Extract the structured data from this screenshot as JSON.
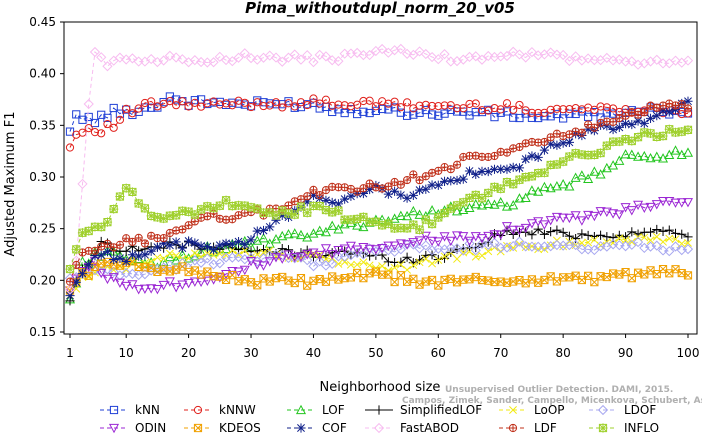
{
  "chart_data": {
    "type": "line",
    "title": "Pima_withoutdupl_norm_20_v05",
    "xlabel": "Neighborhood size",
    "ylabel": "Adjusted Maximum F1",
    "xlim": [
      1,
      100
    ],
    "ylim": [
      0.15,
      0.45
    ],
    "x_ticks": [
      "1",
      "10",
      "20",
      "30",
      "40",
      "50",
      "60",
      "70",
      "80",
      "90",
      "100"
    ],
    "y_ticks": [
      "0.15",
      "0.20",
      "0.25",
      "0.30",
      "0.35",
      "0.40",
      "0.45"
    ],
    "grid": false,
    "legend_position": "bottom",
    "watermark": [
      "Unsupervised Outlier Detection. DAMI, 2015.",
      "Campos, Zimek, Sander, Campello, Micenkova, Schubert, Assent, Houle"
    ],
    "series": [
      {
        "name": "kNN",
        "color": "#1f3fd6",
        "marker": "square",
        "dash": "4,3",
        "anchors": [
          [
            1,
            0.342
          ],
          [
            2,
            0.364
          ],
          [
            3,
            0.356
          ],
          [
            5,
            0.355
          ],
          [
            8,
            0.363
          ],
          [
            10,
            0.363
          ],
          [
            14,
            0.367
          ],
          [
            17,
            0.377
          ],
          [
            20,
            0.372
          ],
          [
            25,
            0.372
          ],
          [
            30,
            0.37
          ],
          [
            35,
            0.371
          ],
          [
            40,
            0.37
          ],
          [
            45,
            0.364
          ],
          [
            50,
            0.366
          ],
          [
            55,
            0.363
          ],
          [
            60,
            0.362
          ],
          [
            65,
            0.363
          ],
          [
            70,
            0.36
          ],
          [
            75,
            0.359
          ],
          [
            80,
            0.359
          ],
          [
            85,
            0.36
          ],
          [
            90,
            0.361
          ],
          [
            95,
            0.364
          ],
          [
            100,
            0.365
          ]
        ]
      },
      {
        "name": "kNNW",
        "color": "#e0201b",
        "marker": "circle",
        "dash": "4,3",
        "anchors": [
          [
            1,
            0.328
          ],
          [
            2,
            0.342
          ],
          [
            4,
            0.347
          ],
          [
            6,
            0.346
          ],
          [
            8,
            0.35
          ],
          [
            10,
            0.362
          ],
          [
            14,
            0.37
          ],
          [
            18,
            0.371
          ],
          [
            22,
            0.369
          ],
          [
            28,
            0.371
          ],
          [
            34,
            0.371
          ],
          [
            40,
            0.372
          ],
          [
            46,
            0.371
          ],
          [
            52,
            0.37
          ],
          [
            58,
            0.369
          ],
          [
            64,
            0.368
          ],
          [
            70,
            0.368
          ],
          [
            76,
            0.365
          ],
          [
            82,
            0.366
          ],
          [
            88,
            0.366
          ],
          [
            94,
            0.366
          ],
          [
            100,
            0.364
          ]
        ]
      },
      {
        "name": "LOF",
        "color": "#22c51e",
        "marker": "triangle-up",
        "dash": "4,3",
        "anchors": [
          [
            1,
            0.182
          ],
          [
            3,
            0.215
          ],
          [
            5,
            0.225
          ],
          [
            8,
            0.23
          ],
          [
            10,
            0.218
          ],
          [
            15,
            0.215
          ],
          [
            20,
            0.225
          ],
          [
            25,
            0.232
          ],
          [
            30,
            0.235
          ],
          [
            35,
            0.24
          ],
          [
            40,
            0.245
          ],
          [
            45,
            0.252
          ],
          [
            50,
            0.258
          ],
          [
            55,
            0.262
          ],
          [
            60,
            0.268
          ],
          [
            65,
            0.27
          ],
          [
            70,
            0.272
          ],
          [
            75,
            0.283
          ],
          [
            80,
            0.292
          ],
          [
            85,
            0.302
          ],
          [
            90,
            0.318
          ],
          [
            95,
            0.322
          ],
          [
            100,
            0.322
          ]
        ]
      },
      {
        "name": "SimplifiedLOF",
        "color": "#000000",
        "marker": "plus",
        "dash": "",
        "anchors": [
          [
            1,
            0.182
          ],
          [
            3,
            0.21
          ],
          [
            6,
            0.235
          ],
          [
            10,
            0.23
          ],
          [
            15,
            0.232
          ],
          [
            20,
            0.235
          ],
          [
            25,
            0.232
          ],
          [
            30,
            0.228
          ],
          [
            35,
            0.228
          ],
          [
            40,
            0.225
          ],
          [
            45,
            0.228
          ],
          [
            50,
            0.222
          ],
          [
            55,
            0.22
          ],
          [
            60,
            0.223
          ],
          [
            65,
            0.232
          ],
          [
            70,
            0.245
          ],
          [
            75,
            0.247
          ],
          [
            80,
            0.245
          ],
          [
            85,
            0.243
          ],
          [
            90,
            0.245
          ],
          [
            95,
            0.247
          ],
          [
            100,
            0.246
          ]
        ]
      },
      {
        "name": "LoOP",
        "color": "#f2ea12",
        "marker": "x",
        "dash": "4,3",
        "anchors": [
          [
            1,
            0.183
          ],
          [
            3,
            0.2
          ],
          [
            6,
            0.215
          ],
          [
            10,
            0.212
          ],
          [
            15,
            0.22
          ],
          [
            20,
            0.225
          ],
          [
            25,
            0.228
          ],
          [
            30,
            0.226
          ],
          [
            35,
            0.225
          ],
          [
            40,
            0.222
          ],
          [
            45,
            0.218
          ],
          [
            50,
            0.213
          ],
          [
            55,
            0.212
          ],
          [
            60,
            0.222
          ],
          [
            65,
            0.225
          ],
          [
            70,
            0.23
          ],
          [
            75,
            0.232
          ],
          [
            80,
            0.236
          ],
          [
            85,
            0.237
          ],
          [
            90,
            0.24
          ],
          [
            95,
            0.241
          ],
          [
            100,
            0.238
          ]
        ]
      },
      {
        "name": "LDOF",
        "color": "#a8a8f0",
        "marker": "diamond",
        "dash": "4,3",
        "anchors": [
          [
            1,
            0.2
          ],
          [
            3,
            0.205
          ],
          [
            6,
            0.21
          ],
          [
            10,
            0.205
          ],
          [
            15,
            0.21
          ],
          [
            20,
            0.215
          ],
          [
            25,
            0.22
          ],
          [
            30,
            0.222
          ],
          [
            35,
            0.223
          ],
          [
            40,
            0.215
          ],
          [
            45,
            0.222
          ],
          [
            50,
            0.23
          ],
          [
            55,
            0.232
          ],
          [
            60,
            0.23
          ],
          [
            65,
            0.232
          ],
          [
            70,
            0.233
          ],
          [
            75,
            0.235
          ],
          [
            80,
            0.235
          ],
          [
            85,
            0.232
          ],
          [
            90,
            0.235
          ],
          [
            95,
            0.232
          ],
          [
            100,
            0.232
          ]
        ]
      },
      {
        "name": "ODIN",
        "color": "#9b26d4",
        "marker": "triangle-down",
        "dash": "4,3",
        "anchors": [
          [
            1,
            0.19
          ],
          [
            3,
            0.212
          ],
          [
            5,
            0.215
          ],
          [
            8,
            0.2
          ],
          [
            10,
            0.195
          ],
          [
            15,
            0.195
          ],
          [
            20,
            0.198
          ],
          [
            25,
            0.205
          ],
          [
            30,
            0.215
          ],
          [
            35,
            0.22
          ],
          [
            40,
            0.225
          ],
          [
            45,
            0.23
          ],
          [
            50,
            0.232
          ],
          [
            55,
            0.238
          ],
          [
            60,
            0.24
          ],
          [
            65,
            0.242
          ],
          [
            70,
            0.248
          ],
          [
            75,
            0.255
          ],
          [
            80,
            0.26
          ],
          [
            85,
            0.262
          ],
          [
            90,
            0.268
          ],
          [
            95,
            0.272
          ],
          [
            100,
            0.277
          ]
        ]
      },
      {
        "name": "KDEOS",
        "color": "#f0a000",
        "marker": "square-x",
        "dash": "4,3",
        "anchors": [
          [
            1,
            0.19
          ],
          [
            3,
            0.205
          ],
          [
            6,
            0.215
          ],
          [
            10,
            0.215
          ],
          [
            15,
            0.212
          ],
          [
            20,
            0.21
          ],
          [
            25,
            0.205
          ],
          [
            30,
            0.198
          ],
          [
            35,
            0.2
          ],
          [
            40,
            0.198
          ],
          [
            45,
            0.202
          ],
          [
            50,
            0.205
          ],
          [
            55,
            0.2
          ],
          [
            60,
            0.198
          ],
          [
            65,
            0.2
          ],
          [
            70,
            0.2
          ],
          [
            75,
            0.2
          ],
          [
            80,
            0.202
          ],
          [
            85,
            0.202
          ],
          [
            90,
            0.205
          ],
          [
            95,
            0.208
          ],
          [
            100,
            0.206
          ]
        ]
      },
      {
        "name": "COF",
        "color": "#10208a",
        "marker": "star",
        "dash": "4,3",
        "anchors": [
          [
            1,
            0.185
          ],
          [
            3,
            0.21
          ],
          [
            6,
            0.225
          ],
          [
            10,
            0.222
          ],
          [
            15,
            0.232
          ],
          [
            20,
            0.235
          ],
          [
            25,
            0.232
          ],
          [
            30,
            0.24
          ],
          [
            35,
            0.26
          ],
          [
            40,
            0.282
          ],
          [
            43,
            0.272
          ],
          [
            46,
            0.285
          ],
          [
            50,
            0.288
          ],
          [
            55,
            0.282
          ],
          [
            60,
            0.292
          ],
          [
            65,
            0.302
          ],
          [
            70,
            0.305
          ],
          [
            75,
            0.318
          ],
          [
            80,
            0.335
          ],
          [
            85,
            0.345
          ],
          [
            90,
            0.352
          ],
          [
            95,
            0.358
          ],
          [
            100,
            0.37
          ]
        ]
      },
      {
        "name": "FastABOD",
        "color": "#f7bcf0",
        "marker": "diamond",
        "dash": "4,3",
        "anchors": [
          [
            1,
            0.195
          ],
          [
            2,
            0.22
          ],
          [
            4,
            0.37
          ],
          [
            5,
            0.418
          ],
          [
            7,
            0.41
          ],
          [
            10,
            0.415
          ],
          [
            15,
            0.414
          ],
          [
            20,
            0.414
          ],
          [
            25,
            0.415
          ],
          [
            30,
            0.416
          ],
          [
            35,
            0.415
          ],
          [
            40,
            0.414
          ],
          [
            45,
            0.416
          ],
          [
            50,
            0.422
          ],
          [
            55,
            0.42
          ],
          [
            60,
            0.416
          ],
          [
            65,
            0.414
          ],
          [
            70,
            0.418
          ],
          [
            75,
            0.418
          ],
          [
            80,
            0.416
          ],
          [
            85,
            0.414
          ],
          [
            90,
            0.41
          ],
          [
            95,
            0.412
          ],
          [
            100,
            0.411
          ]
        ]
      },
      {
        "name": "LDF",
        "color": "#c0301a",
        "marker": "circle-plus",
        "dash": "4,3",
        "anchors": [
          [
            1,
            0.198
          ],
          [
            3,
            0.225
          ],
          [
            6,
            0.23
          ],
          [
            10,
            0.238
          ],
          [
            15,
            0.24
          ],
          [
            20,
            0.255
          ],
          [
            25,
            0.262
          ],
          [
            30,
            0.264
          ],
          [
            35,
            0.27
          ],
          [
            40,
            0.285
          ],
          [
            45,
            0.288
          ],
          [
            50,
            0.29
          ],
          [
            55,
            0.298
          ],
          [
            60,
            0.305
          ],
          [
            65,
            0.318
          ],
          [
            70,
            0.322
          ],
          [
            75,
            0.332
          ],
          [
            80,
            0.342
          ],
          [
            85,
            0.348
          ],
          [
            90,
            0.358
          ],
          [
            95,
            0.367
          ],
          [
            100,
            0.368
          ]
        ]
      },
      {
        "name": "INFLO",
        "color": "#9fd02c",
        "marker": "star-square",
        "dash": "4,3",
        "anchors": [
          [
            1,
            0.21
          ],
          [
            3,
            0.245
          ],
          [
            6,
            0.25
          ],
          [
            10,
            0.288
          ],
          [
            12,
            0.278
          ],
          [
            15,
            0.26
          ],
          [
            20,
            0.265
          ],
          [
            25,
            0.275
          ],
          [
            30,
            0.268
          ],
          [
            35,
            0.265
          ],
          [
            40,
            0.27
          ],
          [
            45,
            0.262
          ],
          [
            50,
            0.255
          ],
          [
            55,
            0.248
          ],
          [
            60,
            0.26
          ],
          [
            65,
            0.278
          ],
          [
            70,
            0.29
          ],
          [
            75,
            0.302
          ],
          [
            80,
            0.315
          ],
          [
            85,
            0.325
          ],
          [
            90,
            0.335
          ],
          [
            95,
            0.342
          ],
          [
            100,
            0.345
          ]
        ]
      }
    ]
  }
}
